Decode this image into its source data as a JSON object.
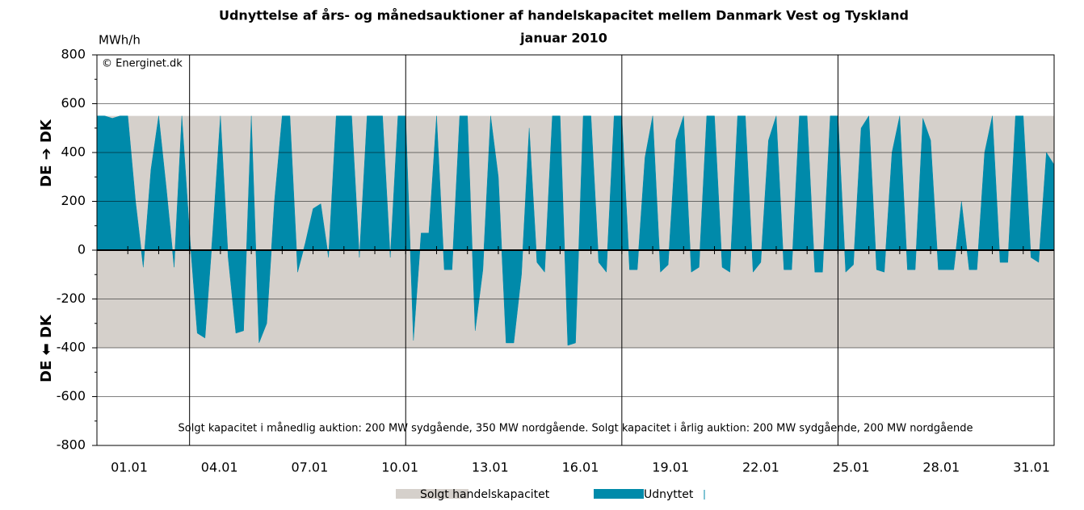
{
  "chart_data": {
    "type": "area",
    "title": "Udnyttelse af års- og månedsauktioner af handelskapacitet mellem Danmark Vest og Tyskland",
    "subtitle": "januar 2010",
    "y_unit": "MWh/h",
    "copyright": "© Energinet.dk",
    "y_label_top": "DE ➔ DK",
    "y_label_bottom": "DE ⬅ DK",
    "annotation": "Solgt kapacitet i månedlig auktion: 200 MW sydgående, 350 MW nordgående. Solgt kapacitet i årlig auktion: 200 MW sydgående, 200 MW nordgående",
    "categories": [
      "01.01",
      "04.01",
      "07.01",
      "10.01",
      "13.01",
      "16.01",
      "19.01",
      "22.01",
      "25.01",
      "28.01",
      "31.01"
    ],
    "xlim": [
      0,
      744
    ],
    "xgrid": [
      72,
      240,
      408,
      576
    ],
    "ylim": [
      -800,
      800
    ],
    "yticks": [
      -800,
      -600,
      -400,
      -200,
      0,
      200,
      400,
      600,
      800
    ],
    "grid": true,
    "capacity": {
      "name": "Solgt handelskapacitet",
      "color": "#d5d0cb",
      "north": 550,
      "south": -400
    },
    "x": [
      0,
      6,
      12,
      18,
      24,
      30,
      36,
      42,
      48,
      54,
      60,
      66,
      72,
      78,
      84,
      90,
      96,
      102,
      108,
      114,
      120,
      126,
      132,
      138,
      144,
      150,
      156,
      162,
      168,
      174,
      180,
      186,
      192,
      198,
      204,
      210,
      216,
      222,
      228,
      234,
      240,
      246,
      252,
      258,
      264,
      270,
      276,
      282,
      288,
      294,
      300,
      306,
      312,
      318,
      324,
      330,
      336,
      342,
      348,
      354,
      360,
      366,
      372,
      378,
      384,
      390,
      396,
      402,
      408,
      414,
      420,
      426,
      432,
      438,
      444,
      450,
      456,
      462,
      468,
      474,
      480,
      486,
      492,
      498,
      504,
      510,
      516,
      522,
      528,
      534,
      540,
      546,
      552,
      558,
      564,
      570,
      576,
      582,
      588,
      594,
      600,
      606,
      612,
      618,
      624,
      630,
      636,
      642,
      648,
      654,
      660,
      666,
      672,
      678,
      684,
      690,
      696,
      702,
      708,
      714,
      720,
      726,
      732,
      738,
      744
    ],
    "series": [
      {
        "name": "Udnyttet",
        "color": "#008aaa",
        "values": [
          550,
          550,
          540,
          550,
          550,
          200,
          -70,
          330,
          550,
          250,
          -70,
          550,
          70,
          -340,
          -360,
          70,
          550,
          -30,
          -340,
          -330,
          550,
          -380,
          -300,
          200,
          550,
          550,
          -90,
          30,
          170,
          190,
          -30,
          550,
          550,
          550,
          -30,
          550,
          550,
          550,
          -30,
          550,
          550,
          -370,
          70,
          70,
          550,
          -80,
          -80,
          550,
          550,
          -330,
          -80,
          550,
          300,
          -380,
          -380,
          -100,
          500,
          -50,
          -90,
          550,
          550,
          -390,
          -380,
          550,
          550,
          -50,
          -90,
          550,
          550,
          -80,
          -80,
          380,
          550,
          -90,
          -60,
          450,
          550,
          -90,
          -70,
          550,
          550,
          -70,
          -90,
          550,
          550,
          -90,
          -50,
          450,
          550,
          -80,
          -80,
          550,
          550,
          -90,
          -90,
          550,
          550,
          -90,
          -60,
          500,
          550,
          -80,
          -90,
          400,
          550,
          -80,
          -80,
          540,
          450,
          -80,
          -80,
          -80,
          200,
          -80,
          -80,
          400,
          550,
          -50,
          -50,
          550,
          550,
          -30,
          -50,
          400,
          350
        ]
      }
    ]
  }
}
